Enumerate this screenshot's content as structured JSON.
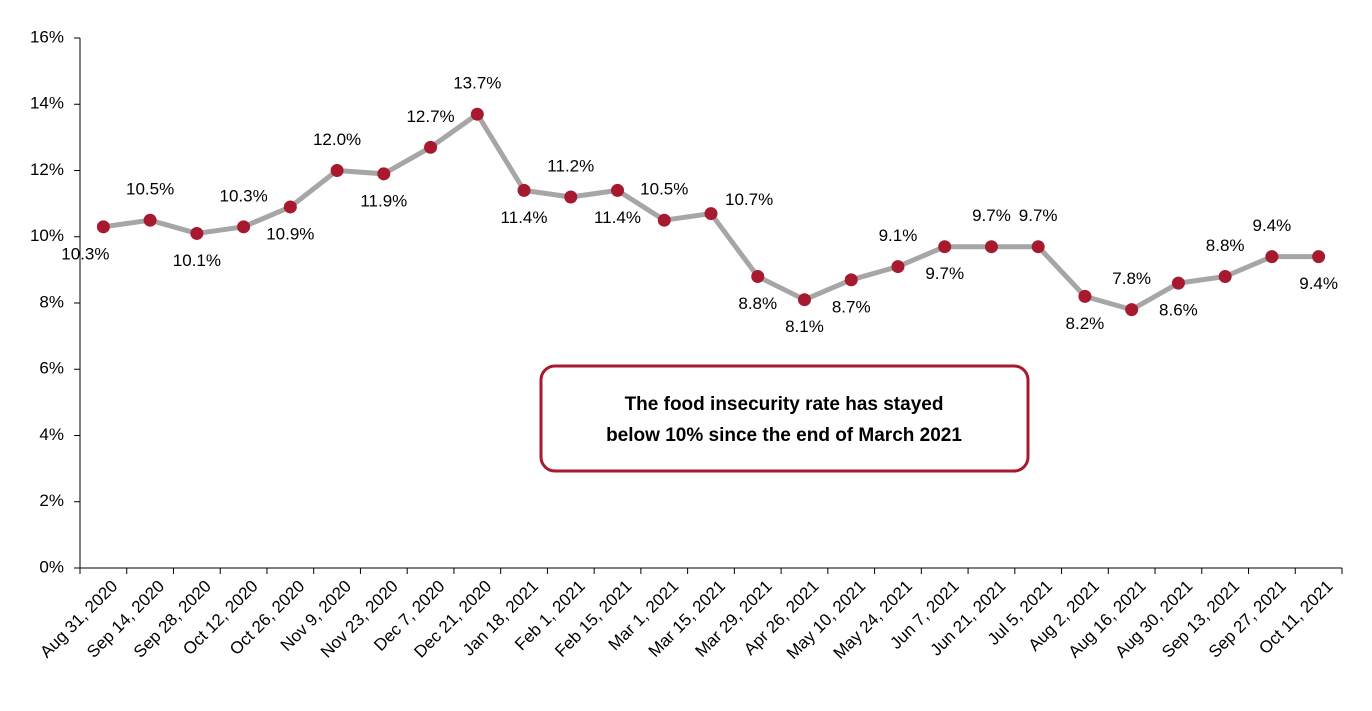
{
  "chart_data": {
    "type": "line",
    "categories": [
      "Aug 31, 2020",
      "Sep 14, 2020",
      "Sep 28, 2020",
      "Oct 12, 2020",
      "Oct 26, 2020",
      "Nov 9, 2020",
      "Nov 23, 2020",
      "Dec 7, 2020",
      "Dec 21, 2020",
      "Jan 18, 2021",
      "Feb 1, 2021",
      "Feb 15, 2021",
      "Mar 1, 2021",
      "Mar 15, 2021",
      "Mar 29, 2021",
      "Apr 26, 2021",
      "May 10, 2021",
      "May 24, 2021",
      "Jun 7, 2021",
      "Jun 21, 2021",
      "Jul 5, 2021",
      "Aug 2, 2021",
      "Aug 16, 2021",
      "Aug 30, 2021",
      "Sep 13, 2021",
      "Sep 27, 2021",
      "Oct 11, 2021"
    ],
    "values": [
      10.3,
      10.5,
      10.1,
      10.3,
      10.9,
      12.0,
      11.9,
      12.7,
      13.7,
      11.4,
      11.2,
      11.4,
      10.5,
      10.7,
      8.8,
      8.1,
      8.7,
      9.1,
      9.7,
      9.7,
      9.7,
      8.2,
      7.8,
      8.6,
      8.8,
      9.4,
      9.4
    ],
    "value_labels": [
      "10.3%",
      "10.5%",
      "10.1%",
      "10.3%",
      "10.9%",
      "12.0%",
      "11.9%",
      "12.7%",
      "13.7%",
      "11.4%",
      "11.2%",
      "11.4%",
      "10.5%",
      "10.7%",
      "8.8%",
      "8.1%",
      "8.7%",
      "9.1%",
      "9.7%",
      "9.7%",
      "9.7%",
      "8.2%",
      "7.8%",
      "8.6%",
      "8.8%",
      "9.4%",
      "9.4%"
    ],
    "line_color": "#a6a6a6",
    "marker_color": "#a6192e",
    "ylim": [
      0,
      16
    ],
    "yticks": [
      {
        "value": 0,
        "label": "0%"
      },
      {
        "value": 2,
        "label": "2%"
      },
      {
        "value": 4,
        "label": "4%"
      },
      {
        "value": 6,
        "label": "6%"
      },
      {
        "value": 8,
        "label": "8%"
      },
      {
        "value": 10,
        "label": "10%"
      },
      {
        "value": 12,
        "label": "12%"
      },
      {
        "value": 14,
        "label": "14%"
      },
      {
        "value": 16,
        "label": "16%"
      }
    ],
    "annotation": [
      "The food insecurity rate has stayed",
      "below 10% since the end of March 2021"
    ]
  }
}
